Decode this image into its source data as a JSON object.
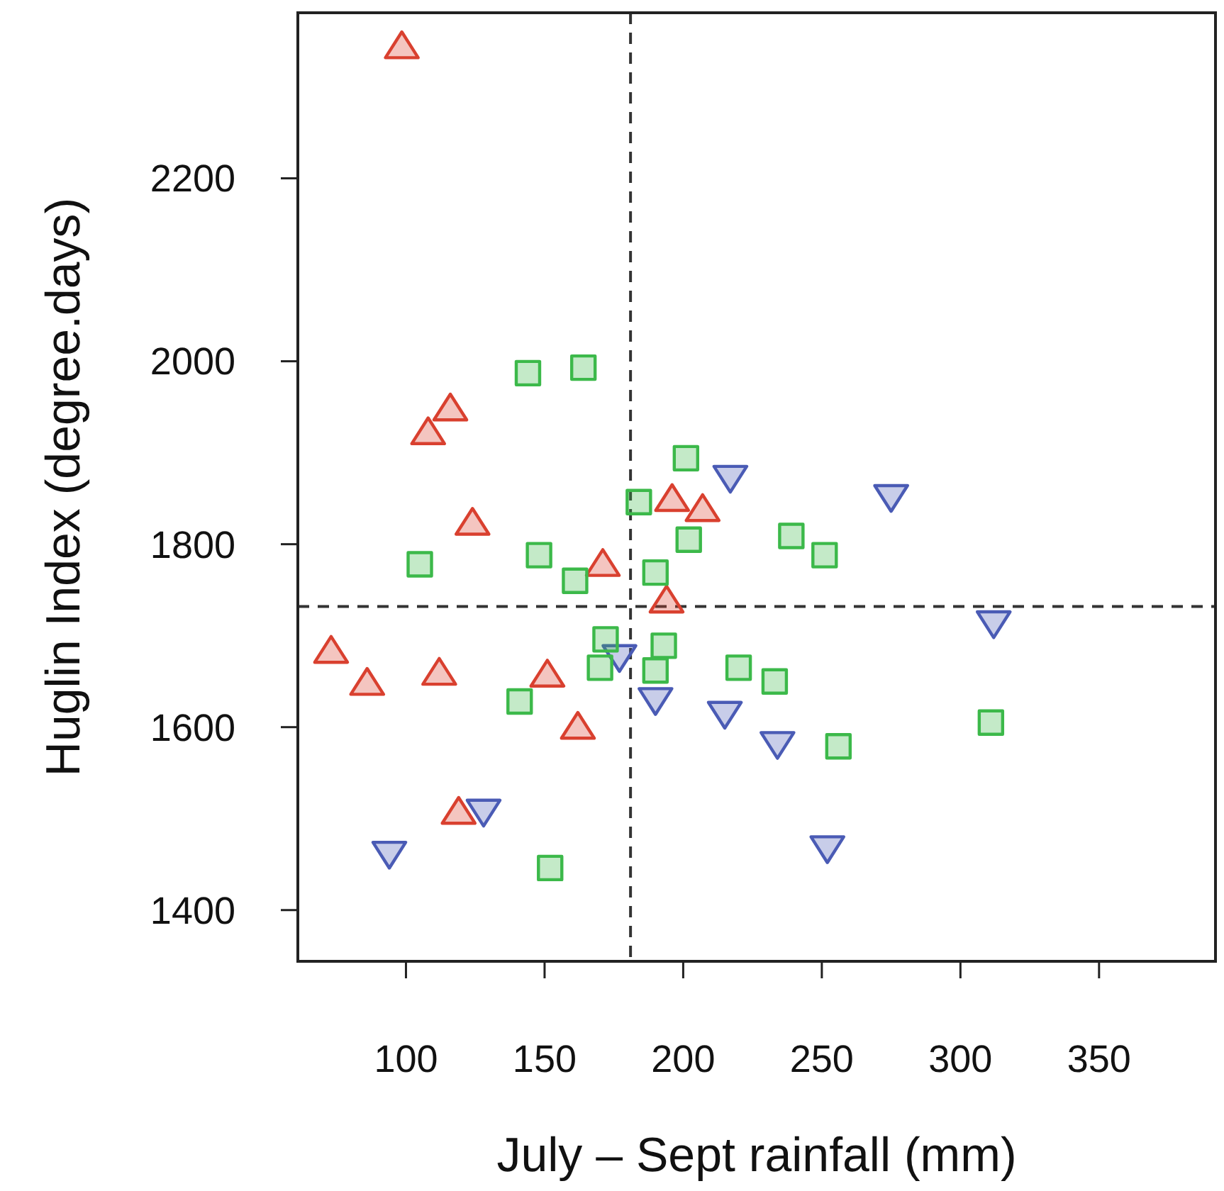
{
  "chart_data": {
    "type": "scatter",
    "xlabel": "July – Sept rainfall (mm)",
    "ylabel": "Huglin Index (degree.days)",
    "xlim": [
      61,
      392
    ],
    "ylim": [
      1344,
      2381
    ],
    "xticks": [
      100,
      150,
      200,
      250,
      300,
      350
    ],
    "yticks": [
      1400,
      1600,
      1800,
      2000,
      2200
    ],
    "grid": false,
    "ref_lines": [
      {
        "axis": "x",
        "value": 181,
        "line_style": "dashed",
        "color": "#333333"
      },
      {
        "axis": "y",
        "value": 1732,
        "line_style": "dashed",
        "color": "#333333"
      }
    ],
    "series": [
      {
        "color": "#d9402f",
        "marker": "triangle",
        "x": [
          98.5,
          108,
          116,
          124,
          171,
          73,
          86,
          112,
          151,
          162,
          119,
          196,
          207,
          194
        ],
        "values": [
          2343,
          1921,
          1947,
          1822,
          1777,
          1682,
          1647,
          1658,
          1656,
          1599,
          1506,
          1848,
          1837,
          1737
        ]
      },
      {
        "color": "#4a5bb5",
        "marker": "triangle-down",
        "x": [
          94,
          128,
          177,
          217,
          275,
          312,
          190,
          215,
          234,
          252
        ],
        "values": [
          1463,
          1509,
          1678,
          1874,
          1853,
          1715,
          1631,
          1616,
          1583,
          1469
        ]
      },
      {
        "color": "#3cb94a",
        "marker": "square",
        "x": [
          144,
          164,
          105,
          148,
          161,
          141,
          152,
          172,
          170,
          184,
          201,
          202,
          190,
          193,
          190,
          220,
          233,
          239,
          251,
          256,
          311
        ],
        "values": [
          1987,
          1993,
          1778,
          1788,
          1760,
          1628,
          1446,
          1696,
          1665,
          1846,
          1894,
          1805,
          1769,
          1689,
          1662,
          1665,
          1650,
          1809,
          1788,
          1579,
          1605
        ]
      }
    ]
  }
}
